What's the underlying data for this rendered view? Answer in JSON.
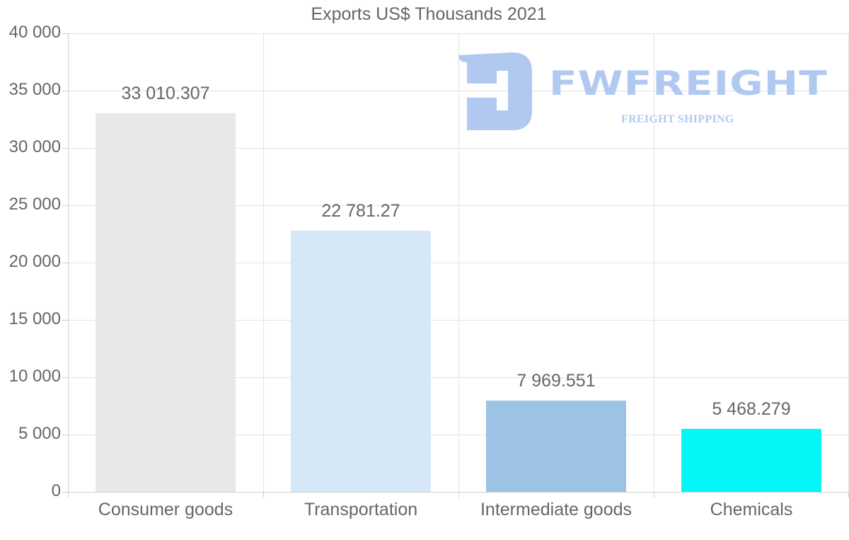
{
  "chart_data": {
    "type": "bar",
    "title": "Exports US$ Thousands 2021",
    "xlabel": "",
    "ylabel": "",
    "ylim": [
      0,
      40000
    ],
    "yticks": [
      0,
      5000,
      10000,
      15000,
      20000,
      25000,
      30000,
      35000,
      40000
    ],
    "ytick_labels": [
      "0",
      "5 000",
      "10 000",
      "15 000",
      "20 000",
      "25 000",
      "30 000",
      "35 000",
      "40 000"
    ],
    "categories": [
      "Consumer goods",
      "Transportation",
      "Intermediate goods",
      "Chemicals"
    ],
    "values": [
      33010.307,
      22781.27,
      7969.551,
      5468.279
    ],
    "value_labels": [
      "33 010.307",
      "22 781.27",
      "7 969.551",
      "5 468.279"
    ],
    "colors": [
      "#e8e8e8",
      "#d6e7f8",
      "#9cc3e6",
      "#04f6f6"
    ],
    "grid": true,
    "legend": null
  },
  "watermark": {
    "brand": "FWFREIGHT",
    "tagline": "FREIGHT SHIPPING",
    "color": "#b1c9f1"
  }
}
